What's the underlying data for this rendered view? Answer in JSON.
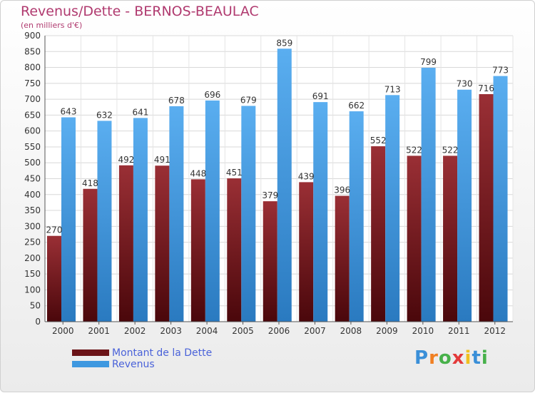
{
  "header": {
    "title": "Revenus/Dette - BERNOS-BEAULAC",
    "subtitle": "(en milliers d'€)"
  },
  "legend": [
    {
      "label": "Montant de la Dette",
      "color": "#6b1317"
    },
    {
      "label": "Revenus",
      "color": "#3e98e0"
    }
  ],
  "logo": {
    "letters": [
      "P",
      "r",
      "o",
      "x",
      "i",
      "t",
      "i"
    ],
    "colors": [
      "#3a8fd8",
      "#f07f22",
      "#47b14a",
      "#e33a3a",
      "#f0c020",
      "#3a8fd8",
      "#47b14a"
    ]
  },
  "chart_data": {
    "type": "bar",
    "title": "Revenus/Dette - BERNOS-BEAULAC",
    "subtitle": "(en milliers d'€)",
    "categories": [
      "2000",
      "2001",
      "2002",
      "2003",
      "2004",
      "2005",
      "2006",
      "2007",
      "2008",
      "2009",
      "2010",
      "2011",
      "2012"
    ],
    "series": [
      {
        "name": "Montant de la Dette",
        "color": "#6b1317",
        "values": [
          270,
          418,
          492,
          491,
          448,
          451,
          379,
          439,
          396,
          552,
          522,
          522,
          716
        ]
      },
      {
        "name": "Revenus",
        "color": "#3e98e0",
        "values": [
          643,
          632,
          641,
          678,
          696,
          679,
          859,
          691,
          662,
          713,
          799,
          730,
          773
        ]
      }
    ],
    "ylim": [
      0,
      900
    ],
    "yticks": [
      0,
      50,
      100,
      150,
      200,
      250,
      300,
      350,
      400,
      450,
      500,
      550,
      600,
      650,
      700,
      750,
      800,
      850,
      900
    ],
    "grid": true,
    "legend_position": "bottom-left"
  }
}
